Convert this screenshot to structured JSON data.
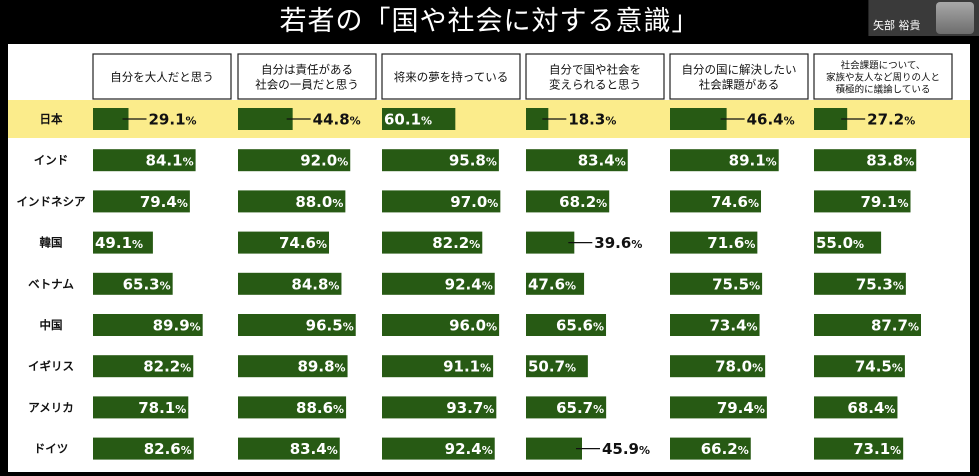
{
  "title": "若者の「国や社会に対する意識」",
  "participant_name": "矢部 裕貴",
  "colors": {
    "bar": "#275a14",
    "highlight": "#fbec8b"
  },
  "chart_data": {
    "type": "bar",
    "orientation": "horizontal",
    "unit": "%",
    "columns": [
      [
        "自分を大人だと思う"
      ],
      [
        "自分は責任がある",
        "社会の一員だと思う"
      ],
      [
        "将来の夢を持っている"
      ],
      [
        "自分で国や社会を",
        "変えられると思う"
      ],
      [
        "自分の国に解決したい",
        "社会課題がある"
      ],
      [
        "社会課題について、",
        "家族や友人など周りの人と",
        "積極的に議論している"
      ]
    ],
    "categories": [
      "日本",
      "インド",
      "インドネシア",
      "韓国",
      "ベトナム",
      "中国",
      "イギリス",
      "アメリカ",
      "ドイツ"
    ],
    "highlight_category": "日本",
    "values": [
      [
        29.1,
        44.8,
        60.1,
        18.3,
        46.4,
        27.2
      ],
      [
        84.1,
        92.0,
        95.8,
        83.4,
        89.1,
        83.8
      ],
      [
        79.4,
        88.0,
        97.0,
        68.2,
        74.6,
        79.1
      ],
      [
        49.1,
        74.6,
        82.2,
        39.6,
        71.6,
        55.0
      ],
      [
        65.3,
        84.8,
        92.4,
        47.6,
        75.5,
        75.3
      ],
      [
        89.9,
        96.5,
        96.0,
        65.6,
        73.4,
        87.7
      ],
      [
        82.2,
        89.8,
        91.1,
        50.7,
        78.0,
        74.5
      ],
      [
        78.1,
        88.6,
        93.7,
        65.7,
        79.4,
        68.4
      ],
      [
        82.6,
        83.4,
        92.4,
        45.9,
        66.2,
        73.1
      ]
    ],
    "xlim": [
      0,
      100
    ]
  }
}
